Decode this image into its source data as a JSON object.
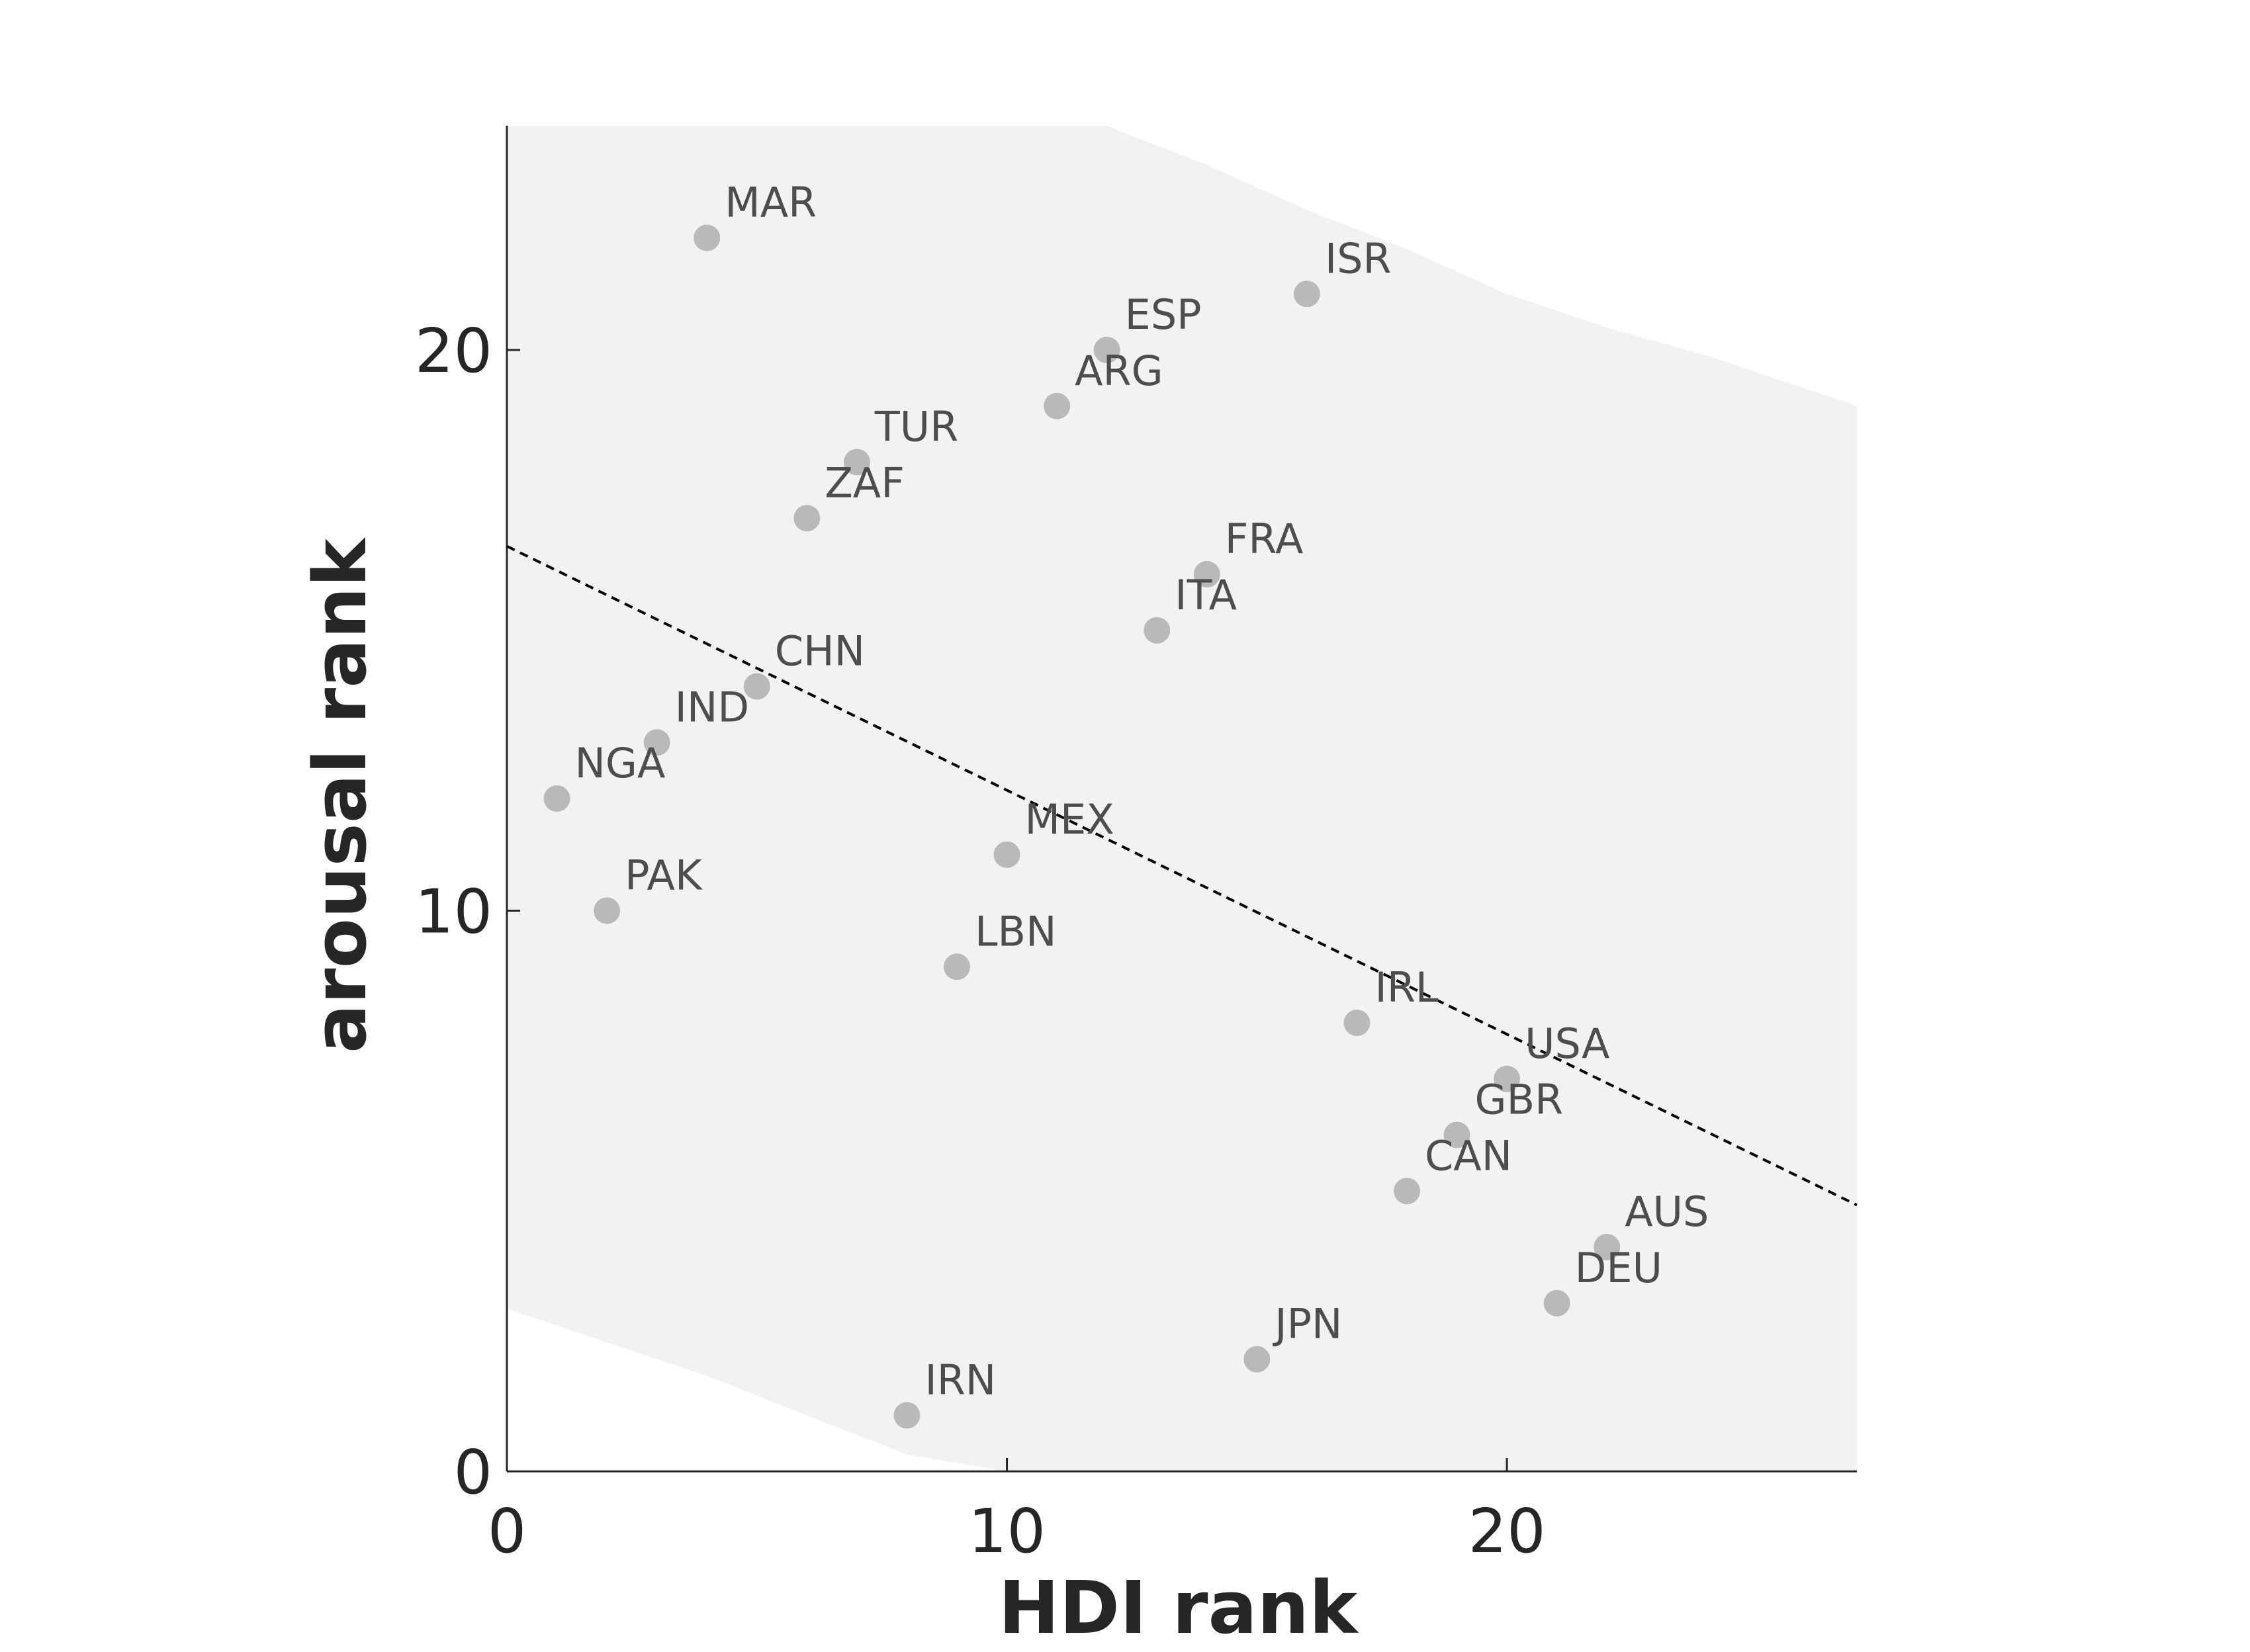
{
  "chart_data": {
    "type": "scatter",
    "title": "",
    "xlabel": "HDI rank",
    "ylabel": "arousal rank",
    "xlim": [
      0,
      27
    ],
    "ylim": [
      0,
      24
    ],
    "xticks": [
      0,
      10,
      20
    ],
    "yticks": [
      0,
      10,
      20
    ],
    "grid": false,
    "legend": "none",
    "colors": {
      "point": "#b9b9b9",
      "band": "#f2f2f2",
      "trend": "#000000",
      "axis": "#262626",
      "label": "#4d4d4d"
    },
    "points": [
      {
        "label": "MAR",
        "x": 4,
        "y": 22
      },
      {
        "label": "ISR",
        "x": 16,
        "y": 21
      },
      {
        "label": "ESP",
        "x": 12,
        "y": 20
      },
      {
        "label": "ARG",
        "x": 11,
        "y": 19
      },
      {
        "label": "TUR",
        "x": 7,
        "y": 18
      },
      {
        "label": "ZAF",
        "x": 6,
        "y": 17
      },
      {
        "label": "FRA",
        "x": 14,
        "y": 16
      },
      {
        "label": "ITA",
        "x": 13,
        "y": 15
      },
      {
        "label": "CHN",
        "x": 5,
        "y": 14
      },
      {
        "label": "IND",
        "x": 3,
        "y": 13
      },
      {
        "label": "NGA",
        "x": 1,
        "y": 12
      },
      {
        "label": "MEX",
        "x": 10,
        "y": 11
      },
      {
        "label": "PAK",
        "x": 2,
        "y": 10
      },
      {
        "label": "LBN",
        "x": 9,
        "y": 9
      },
      {
        "label": "IRL",
        "x": 17,
        "y": 8
      },
      {
        "label": "USA",
        "x": 20,
        "y": 7
      },
      {
        "label": "GBR",
        "x": 19,
        "y": 6
      },
      {
        "label": "CAN",
        "x": 18,
        "y": 5
      },
      {
        "label": "AUS",
        "x": 22,
        "y": 4
      },
      {
        "label": "DEU",
        "x": 21,
        "y": 3
      },
      {
        "label": "JPN",
        "x": 15,
        "y": 2
      },
      {
        "label": "IRN",
        "x": 8,
        "y": 1
      }
    ],
    "trend_line": {
      "x": [
        0,
        27
      ],
      "y": [
        16.5,
        4.75
      ]
    },
    "confidence_band": {
      "x": [
        0,
        2,
        4,
        6,
        8,
        10,
        12,
        14,
        16,
        18,
        20,
        22,
        24,
        27
      ],
      "upper": [
        24,
        24,
        24,
        24,
        24,
        24,
        24,
        23.3,
        22.5,
        21.8,
        21.0,
        20.4,
        19.9,
        19.0
      ],
      "lower": [
        2.9,
        2.3,
        1.7,
        1.0,
        0.3,
        0,
        0,
        0,
        0,
        0,
        0,
        0,
        0,
        0
      ]
    }
  }
}
